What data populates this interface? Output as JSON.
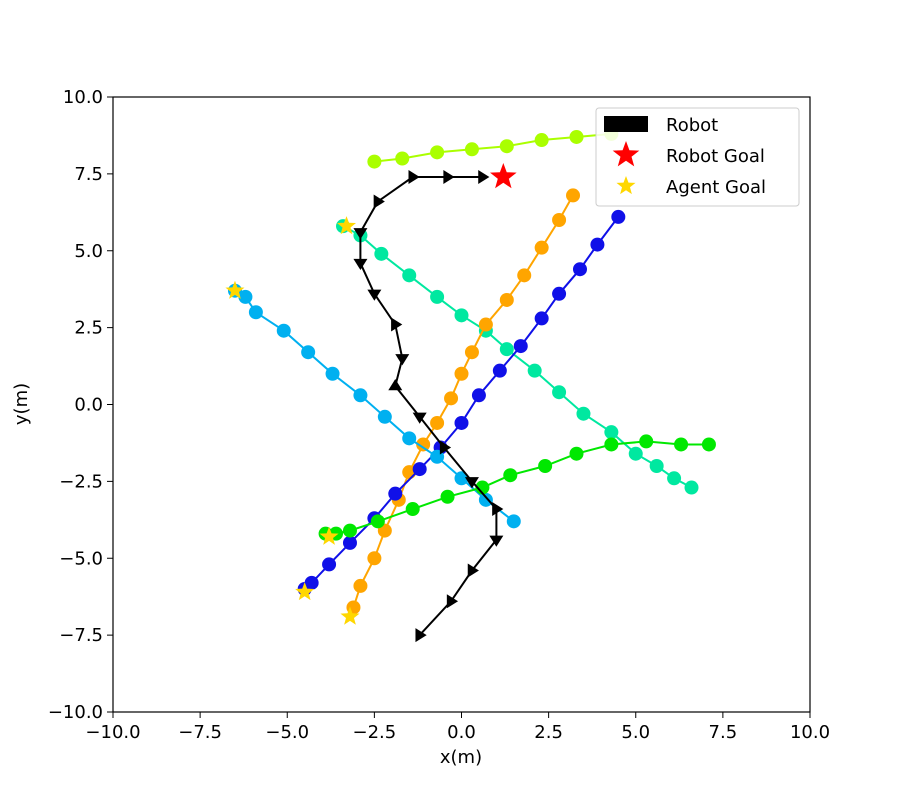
{
  "chart_data": {
    "type": "scatter",
    "xlabel": "x(m)",
    "ylabel": "y(m)",
    "xlim": [
      -10,
      10
    ],
    "ylim": [
      -10,
      10
    ],
    "xticks": [
      "−10.0",
      "−7.5",
      "−5.0",
      "−2.5",
      "0.0",
      "2.5",
      "5.0",
      "7.5",
      "10.0"
    ],
    "yticks": [
      "−10.0",
      "−7.5",
      "−5.0",
      "−2.5",
      "0.0",
      "2.5",
      "5.0",
      "7.5",
      "10.0"
    ],
    "grid": false,
    "legend_position": "top-right",
    "legend": [
      {
        "label": "Robot",
        "marker": "rect",
        "color": "#000000"
      },
      {
        "label": "Robot Goal",
        "marker": "star",
        "color": "#ff0000"
      },
      {
        "label": "Agent Goal",
        "marker": "star",
        "color": "#ffd700"
      }
    ],
    "robot": {
      "color": "#000000",
      "points": [
        {
          "x": -1.2,
          "y": -7.5,
          "dir": "right"
        },
        {
          "x": -0.3,
          "y": -6.4,
          "dir": "right"
        },
        {
          "x": 0.3,
          "y": -5.4,
          "dir": "right"
        },
        {
          "x": 1.0,
          "y": -4.4,
          "dir": "down"
        },
        {
          "x": 1.0,
          "y": -3.4,
          "dir": "right"
        },
        {
          "x": 0.3,
          "y": -2.5,
          "dir": "down"
        },
        {
          "x": -0.5,
          "y": -1.4,
          "dir": "right"
        },
        {
          "x": -1.2,
          "y": -0.4,
          "dir": "down"
        },
        {
          "x": -1.9,
          "y": 0.6,
          "dir": "up"
        },
        {
          "x": -1.7,
          "y": 1.5,
          "dir": "down"
        },
        {
          "x": -1.9,
          "y": 2.6,
          "dir": "right"
        },
        {
          "x": -2.5,
          "y": 3.6,
          "dir": "down"
        },
        {
          "x": -2.9,
          "y": 4.6,
          "dir": "down"
        },
        {
          "x": -2.9,
          "y": 5.6,
          "dir": "down"
        },
        {
          "x": -2.4,
          "y": 6.6,
          "dir": "right"
        },
        {
          "x": -1.4,
          "y": 7.4,
          "dir": "right"
        },
        {
          "x": -0.4,
          "y": 7.4,
          "dir": "right"
        },
        {
          "x": 0.6,
          "y": 7.4,
          "dir": "right"
        }
      ],
      "goal": {
        "x": 1.2,
        "y": 7.4
      }
    },
    "agents": [
      {
        "color": "#aaff00",
        "x": [
          -2.5,
          -1.7,
          -0.7,
          0.3,
          1.3,
          2.3,
          3.3,
          4.3
        ],
        "y": [
          7.9,
          8.0,
          8.2,
          8.3,
          8.4,
          8.6,
          8.7,
          8.8
        ]
      },
      {
        "color": "#00e8a0",
        "x": [
          -3.4,
          -2.9,
          -2.3,
          -1.5,
          -0.7,
          0.0,
          0.7,
          1.3,
          2.1,
          2.8,
          3.5,
          4.3,
          5.0,
          5.6,
          6.1,
          6.6
        ],
        "y": [
          5.8,
          5.5,
          4.9,
          4.2,
          3.5,
          2.9,
          2.4,
          1.8,
          1.1,
          0.4,
          -0.3,
          -0.9,
          -1.6,
          -2.0,
          -2.4,
          -2.7
        ],
        "goal": {
          "x": -3.3,
          "y": 5.8
        }
      },
      {
        "color": "#ffa500",
        "x": [
          -3.1,
          -2.9,
          -2.5,
          -2.2,
          -1.8,
          -1.5,
          -1.1,
          -0.7,
          -0.3,
          0.0,
          0.3,
          0.7,
          1.3,
          1.8,
          2.3,
          2.8,
          3.2
        ],
        "y": [
          -6.6,
          -5.9,
          -5.0,
          -4.1,
          -3.1,
          -2.2,
          -1.3,
          -0.6,
          0.2,
          1.0,
          1.7,
          2.6,
          3.4,
          4.2,
          5.1,
          6.0,
          6.8
        ],
        "goal": {
          "x": -3.2,
          "y": -6.9
        }
      },
      {
        "color": "#1010e8",
        "x": [
          -4.5,
          -4.3,
          -3.8,
          -3.2,
          -2.5,
          -1.9,
          -1.2,
          -0.6,
          0.0,
          0.5,
          1.1,
          1.7,
          2.3,
          2.8,
          3.4,
          3.9,
          4.5
        ],
        "y": [
          -6.0,
          -5.8,
          -5.2,
          -4.5,
          -3.7,
          -2.9,
          -2.1,
          -1.4,
          -0.6,
          0.3,
          1.1,
          1.9,
          2.8,
          3.6,
          4.4,
          5.2,
          6.1
        ],
        "goal": {
          "x": -4.5,
          "y": -6.1
        }
      },
      {
        "color": "#00b0f0",
        "x": [
          -6.5,
          -6.2,
          -5.9,
          -5.1,
          -4.4,
          -3.7,
          -2.9,
          -2.2,
          -1.5,
          -0.7,
          0.0,
          0.7,
          1.5
        ],
        "y": [
          3.7,
          3.5,
          3.0,
          2.4,
          1.7,
          1.0,
          0.3,
          -0.4,
          -1.1,
          -1.7,
          -2.4,
          -3.1,
          -3.8
        ],
        "goal": {
          "x": -6.5,
          "y": 3.7
        }
      },
      {
        "color": "#00e800",
        "x": [
          -3.9,
          -3.6,
          -3.2,
          -2.4,
          -1.4,
          -0.4,
          0.6,
          1.4,
          2.4,
          3.3,
          4.3,
          5.3,
          6.3,
          7.1
        ],
        "y": [
          -4.2,
          -4.2,
          -4.1,
          -3.8,
          -3.4,
          -3.0,
          -2.7,
          -2.3,
          -2.0,
          -1.6,
          -1.3,
          -1.2,
          -1.3,
          -1.3
        ],
        "goal": {
          "x": -3.8,
          "y": -4.3
        }
      }
    ]
  }
}
